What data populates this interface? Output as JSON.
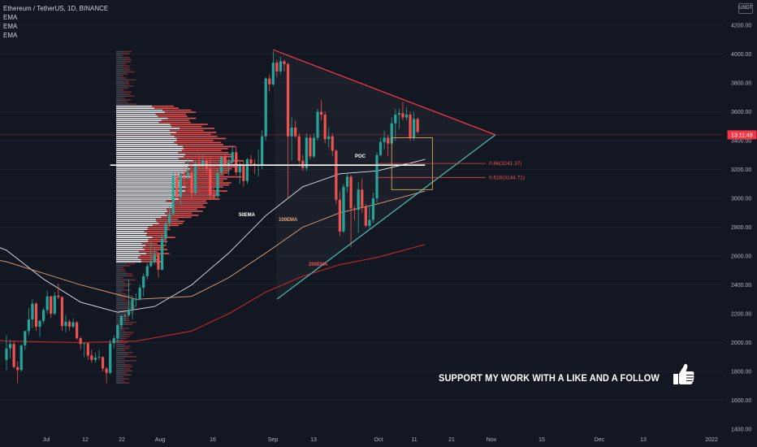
{
  "header": {
    "symbol_title": "Ethereum / TetherUS, 1D, BINANCE",
    "indicators": [
      "EMA",
      "EMA",
      "EMA"
    ],
    "currency_button": "USDT"
  },
  "price_axis": {
    "ticks": [
      "4200.00",
      "4000.00",
      "3800.00",
      "3600.00",
      "3400.00",
      "3200.00",
      "3000.00",
      "2800.00",
      "2600.00",
      "2400.00",
      "2200.00",
      "2000.00",
      "1800.00",
      "1600.00",
      "1400.00"
    ],
    "current_label": "13:11:48",
    "current_label_color": "#f23645"
  },
  "time_axis": {
    "ticks": [
      "Jul",
      "12",
      "22",
      "Aug",
      "16",
      "Sep",
      "13",
      "Oct",
      "11",
      "21",
      "Nov",
      "15",
      "Dec",
      "13",
      "2022"
    ]
  },
  "annotations": {
    "poc_label": "POC",
    "ema50_label": "50EMA",
    "ema100_label": "100EMA",
    "ema200_label": "200EMA",
    "fib_066_label": "0.66(3241.37)",
    "fib_0618_label": "0.618(3144.71)"
  },
  "promo": {
    "text": "SUPPORT MY WORK WITH A LIKE AND A FOLLOW",
    "icon": "thumbs-up-icon"
  },
  "colors": {
    "background": "#131722",
    "up_candle": "#26a69a",
    "down_candle": "#ef5350",
    "ema50": "#e0e3eb",
    "ema100": "#e8a27a",
    "ema200": "#c62828",
    "resistance_line": "#f23645",
    "support_line": "#4db6ac",
    "fib_box": "#d9a55b",
    "poc_line": "#ffffff"
  },
  "chart_data": {
    "type": "candlestick",
    "title": "Ethereum / TetherUS, 1D, BINANCE",
    "ylim": [
      1400,
      4300
    ],
    "candles": [
      {
        "date": "2021-06-23",
        "o": 1880,
        "h": 2050,
        "l": 1810,
        "c": 1960
      },
      {
        "date": "2021-06-24",
        "o": 1960,
        "h": 2020,
        "l": 1890,
        "c": 1990
      },
      {
        "date": "2021-06-25",
        "o": 1990,
        "h": 2010,
        "l": 1820,
        "c": 1830
      },
      {
        "date": "2021-06-26",
        "o": 1830,
        "h": 1870,
        "l": 1720,
        "c": 1810
      },
      {
        "date": "2021-06-27",
        "o": 1810,
        "h": 1990,
        "l": 1800,
        "c": 1980
      },
      {
        "date": "2021-06-28",
        "o": 1980,
        "h": 2080,
        "l": 1950,
        "c": 2080
      },
      {
        "date": "2021-06-29",
        "o": 2080,
        "h": 2240,
        "l": 2050,
        "c": 2160
      },
      {
        "date": "2021-06-30",
        "o": 2160,
        "h": 2300,
        "l": 2100,
        "c": 2270
      },
      {
        "date": "2021-07-01",
        "o": 2270,
        "h": 2280,
        "l": 2080,
        "c": 2110
      },
      {
        "date": "2021-07-02",
        "o": 2110,
        "h": 2160,
        "l": 2040,
        "c": 2150
      },
      {
        "date": "2021-07-03",
        "o": 2150,
        "h": 2240,
        "l": 2130,
        "c": 2225
      },
      {
        "date": "2021-07-04",
        "o": 2225,
        "h": 2360,
        "l": 2200,
        "c": 2320
      },
      {
        "date": "2021-07-05",
        "o": 2320,
        "h": 2325,
        "l": 2170,
        "c": 2200
      },
      {
        "date": "2021-07-06",
        "o": 2200,
        "h": 2350,
        "l": 2190,
        "c": 2325
      },
      {
        "date": "2021-07-07",
        "o": 2325,
        "h": 2410,
        "l": 2300,
        "c": 2315
      },
      {
        "date": "2021-07-08",
        "o": 2315,
        "h": 2320,
        "l": 2080,
        "c": 2115
      },
      {
        "date": "2021-07-09",
        "o": 2115,
        "h": 2190,
        "l": 2070,
        "c": 2145
      },
      {
        "date": "2021-07-10",
        "o": 2145,
        "h": 2160,
        "l": 2080,
        "c": 2110
      },
      {
        "date": "2021-07-11",
        "o": 2110,
        "h": 2170,
        "l": 2100,
        "c": 2140
      },
      {
        "date": "2021-07-12",
        "o": 2140,
        "h": 2150,
        "l": 2020,
        "c": 2030
      },
      {
        "date": "2021-07-13",
        "o": 2030,
        "h": 2040,
        "l": 1950,
        "c": 1990
      },
      {
        "date": "2021-07-14",
        "o": 1990,
        "h": 2000,
        "l": 1900,
        "c": 1995
      },
      {
        "date": "2021-07-15",
        "o": 1995,
        "h": 2000,
        "l": 1880,
        "c": 1910
      },
      {
        "date": "2021-07-16",
        "o": 1910,
        "h": 1950,
        "l": 1860,
        "c": 1880
      },
      {
        "date": "2021-07-17",
        "o": 1880,
        "h": 1930,
        "l": 1860,
        "c": 1895
      },
      {
        "date": "2021-07-18",
        "o": 1895,
        "h": 1950,
        "l": 1880,
        "c": 1900
      },
      {
        "date": "2021-07-19",
        "o": 1900,
        "h": 1905,
        "l": 1800,
        "c": 1820
      },
      {
        "date": "2021-07-20",
        "o": 1820,
        "h": 1830,
        "l": 1720,
        "c": 1790
      },
      {
        "date": "2021-07-21",
        "o": 1790,
        "h": 2020,
        "l": 1780,
        "c": 1995
      },
      {
        "date": "2021-07-22",
        "o": 1995,
        "h": 2050,
        "l": 1960,
        "c": 2030
      },
      {
        "date": "2021-07-23",
        "o": 2030,
        "h": 2130,
        "l": 2000,
        "c": 2120
      },
      {
        "date": "2021-07-24",
        "o": 2120,
        "h": 2190,
        "l": 2090,
        "c": 2185
      },
      {
        "date": "2021-07-25",
        "o": 2185,
        "h": 2200,
        "l": 2150,
        "c": 2190
      },
      {
        "date": "2021-07-26",
        "o": 2190,
        "h": 2440,
        "l": 2180,
        "c": 2230
      },
      {
        "date": "2021-07-27",
        "o": 2230,
        "h": 2320,
        "l": 2160,
        "c": 2300
      },
      {
        "date": "2021-07-28",
        "o": 2300,
        "h": 2340,
        "l": 2250,
        "c": 2300
      },
      {
        "date": "2021-07-29",
        "o": 2300,
        "h": 2400,
        "l": 2290,
        "c": 2380
      },
      {
        "date": "2021-07-30",
        "o": 2380,
        "h": 2480,
        "l": 2320,
        "c": 2460
      },
      {
        "date": "2021-07-31",
        "o": 2460,
        "h": 2550,
        "l": 2440,
        "c": 2530
      },
      {
        "date": "2021-08-01",
        "o": 2530,
        "h": 2700,
        "l": 2520,
        "c": 2560
      },
      {
        "date": "2021-08-02",
        "o": 2560,
        "h": 2660,
        "l": 2540,
        "c": 2610
      },
      {
        "date": "2021-08-03",
        "o": 2610,
        "h": 2630,
        "l": 2450,
        "c": 2505
      },
      {
        "date": "2021-08-04",
        "o": 2505,
        "h": 2760,
        "l": 2500,
        "c": 2720
      },
      {
        "date": "2021-08-05",
        "o": 2720,
        "h": 2840,
        "l": 2680,
        "c": 2825
      },
      {
        "date": "2021-08-06",
        "o": 2825,
        "h": 2950,
        "l": 2800,
        "c": 2890
      },
      {
        "date": "2021-08-07",
        "o": 2890,
        "h": 3180,
        "l": 2880,
        "c": 3150
      },
      {
        "date": "2021-08-08",
        "o": 3150,
        "h": 3180,
        "l": 3000,
        "c": 3010
      },
      {
        "date": "2021-08-09",
        "o": 3010,
        "h": 3180,
        "l": 2950,
        "c": 3160
      },
      {
        "date": "2021-08-10",
        "o": 3160,
        "h": 3220,
        "l": 3080,
        "c": 3150
      },
      {
        "date": "2021-08-11",
        "o": 3150,
        "h": 3280,
        "l": 3130,
        "c": 3180
      },
      {
        "date": "2021-08-12",
        "o": 3180,
        "h": 3190,
        "l": 3000,
        "c": 3040
      },
      {
        "date": "2021-08-13",
        "o": 3040,
        "h": 3260,
        "l": 3020,
        "c": 3240
      },
      {
        "date": "2021-08-14",
        "o": 3240,
        "h": 3300,
        "l": 3200,
        "c": 3230
      },
      {
        "date": "2021-08-15",
        "o": 3230,
        "h": 3300,
        "l": 3200,
        "c": 3260
      },
      {
        "date": "2021-08-16",
        "o": 3260,
        "h": 3270,
        "l": 3170,
        "c": 3210
      },
      {
        "date": "2021-08-17",
        "o": 3210,
        "h": 3280,
        "l": 2990,
        "c": 3020
      },
      {
        "date": "2021-08-18",
        "o": 3020,
        "h": 3080,
        "l": 2990,
        "c": 3015
      },
      {
        "date": "2021-08-19",
        "o": 3015,
        "h": 3200,
        "l": 3000,
        "c": 3180
      },
      {
        "date": "2021-08-20",
        "o": 3180,
        "h": 3290,
        "l": 3160,
        "c": 3285
      },
      {
        "date": "2021-08-21",
        "o": 3285,
        "h": 3300,
        "l": 3220,
        "c": 3230
      },
      {
        "date": "2021-08-22",
        "o": 3230,
        "h": 3280,
        "l": 3160,
        "c": 3250
      },
      {
        "date": "2021-08-23",
        "o": 3250,
        "h": 3360,
        "l": 3240,
        "c": 3320
      },
      {
        "date": "2021-08-24",
        "o": 3320,
        "h": 3360,
        "l": 3160,
        "c": 3180
      },
      {
        "date": "2021-08-25",
        "o": 3180,
        "h": 3250,
        "l": 3100,
        "c": 3230
      },
      {
        "date": "2021-08-26",
        "o": 3230,
        "h": 3260,
        "l": 3080,
        "c": 3120
      },
      {
        "date": "2021-08-27",
        "o": 3120,
        "h": 3280,
        "l": 3100,
        "c": 3270
      },
      {
        "date": "2021-08-28",
        "o": 3270,
        "h": 3300,
        "l": 3220,
        "c": 3240
      },
      {
        "date": "2021-08-29",
        "o": 3240,
        "h": 3270,
        "l": 3170,
        "c": 3225
      },
      {
        "date": "2021-08-30",
        "o": 3225,
        "h": 3340,
        "l": 3150,
        "c": 3230
      },
      {
        "date": "2021-08-31",
        "o": 3230,
        "h": 3470,
        "l": 3200,
        "c": 3430
      },
      {
        "date": "2021-09-01",
        "o": 3430,
        "h": 3840,
        "l": 3400,
        "c": 3830
      },
      {
        "date": "2021-09-02",
        "o": 3830,
        "h": 3860,
        "l": 3740,
        "c": 3790
      },
      {
        "date": "2021-09-03",
        "o": 3790,
        "h": 4020,
        "l": 3780,
        "c": 3940
      },
      {
        "date": "2021-09-04",
        "o": 3940,
        "h": 3960,
        "l": 3840,
        "c": 3880
      },
      {
        "date": "2021-09-05",
        "o": 3880,
        "h": 3980,
        "l": 3860,
        "c": 3950
      },
      {
        "date": "2021-09-06",
        "o": 3950,
        "h": 3960,
        "l": 3880,
        "c": 3930
      },
      {
        "date": "2021-09-07",
        "o": 3930,
        "h": 3940,
        "l": 3000,
        "c": 3430
      },
      {
        "date": "2021-09-08",
        "o": 3430,
        "h": 3560,
        "l": 3260,
        "c": 3490
      },
      {
        "date": "2021-09-09",
        "o": 3490,
        "h": 3540,
        "l": 3420,
        "c": 3430
      },
      {
        "date": "2021-09-10",
        "o": 3430,
        "h": 3450,
        "l": 3220,
        "c": 3260
      },
      {
        "date": "2021-09-11",
        "o": 3260,
        "h": 3300,
        "l": 3190,
        "c": 3210
      },
      {
        "date": "2021-09-12",
        "o": 3210,
        "h": 3450,
        "l": 3190,
        "c": 3420
      },
      {
        "date": "2021-09-13",
        "o": 3420,
        "h": 3440,
        "l": 3270,
        "c": 3290
      },
      {
        "date": "2021-09-14",
        "o": 3290,
        "h": 3450,
        "l": 3280,
        "c": 3420
      },
      {
        "date": "2021-09-15",
        "o": 3420,
        "h": 3620,
        "l": 3400,
        "c": 3600
      },
      {
        "date": "2021-09-16",
        "o": 3600,
        "h": 3680,
        "l": 3540,
        "c": 3580
      },
      {
        "date": "2021-09-17",
        "o": 3580,
        "h": 3600,
        "l": 3380,
        "c": 3410
      },
      {
        "date": "2021-09-18",
        "o": 3410,
        "h": 3490,
        "l": 3350,
        "c": 3430
      },
      {
        "date": "2021-09-19",
        "o": 3430,
        "h": 3450,
        "l": 3290,
        "c": 3330
      },
      {
        "date": "2021-09-20",
        "o": 3330,
        "h": 3340,
        "l": 2960,
        "c": 2990
      },
      {
        "date": "2021-09-21",
        "o": 2990,
        "h": 3050,
        "l": 2740,
        "c": 2770
      },
      {
        "date": "2021-09-22",
        "o": 2770,
        "h": 3100,
        "l": 2760,
        "c": 3080
      },
      {
        "date": "2021-09-23",
        "o": 3080,
        "h": 3170,
        "l": 3040,
        "c": 3150
      },
      {
        "date": "2021-09-24",
        "o": 3150,
        "h": 3160,
        "l": 2660,
        "c": 2930
      },
      {
        "date": "2021-09-25",
        "o": 2930,
        "h": 2950,
        "l": 2850,
        "c": 2920
      },
      {
        "date": "2021-09-26",
        "o": 2920,
        "h": 3110,
        "l": 2760,
        "c": 3060
      },
      {
        "date": "2021-09-27",
        "o": 3060,
        "h": 3140,
        "l": 2900,
        "c": 2940
      },
      {
        "date": "2021-09-28",
        "o": 2940,
        "h": 2960,
        "l": 2800,
        "c": 2810
      },
      {
        "date": "2021-09-29",
        "o": 2810,
        "h": 2950,
        "l": 2790,
        "c": 2850
      },
      {
        "date": "2021-09-30",
        "o": 2850,
        "h": 3040,
        "l": 2830,
        "c": 3000
      },
      {
        "date": "2021-10-01",
        "o": 3000,
        "h": 3320,
        "l": 2970,
        "c": 3300
      },
      {
        "date": "2021-10-02",
        "o": 3300,
        "h": 3420,
        "l": 3290,
        "c": 3390
      },
      {
        "date": "2021-10-03",
        "o": 3390,
        "h": 3470,
        "l": 3340,
        "c": 3420
      },
      {
        "date": "2021-10-04",
        "o": 3420,
        "h": 3440,
        "l": 3290,
        "c": 3380
      },
      {
        "date": "2021-10-05",
        "o": 3380,
        "h": 3560,
        "l": 3370,
        "c": 3520
      },
      {
        "date": "2021-10-06",
        "o": 3520,
        "h": 3620,
        "l": 3400,
        "c": 3580
      },
      {
        "date": "2021-10-07",
        "o": 3580,
        "h": 3620,
        "l": 3480,
        "c": 3590
      },
      {
        "date": "2021-10-08",
        "o": 3590,
        "h": 3670,
        "l": 3540,
        "c": 3560
      },
      {
        "date": "2021-10-09",
        "o": 3560,
        "h": 3630,
        "l": 3540,
        "c": 3580
      },
      {
        "date": "2021-10-10",
        "o": 3580,
        "h": 3600,
        "l": 3400,
        "c": 3420
      },
      {
        "date": "2021-10-11",
        "o": 3420,
        "h": 3600,
        "l": 3400,
        "c": 3550
      },
      {
        "date": "2021-10-12",
        "o": 3550,
        "h": 3560,
        "l": 3450,
        "c": 3460
      }
    ],
    "ema50": [
      [
        0,
        2640
      ],
      [
        10,
        2440
      ],
      [
        20,
        2280
      ],
      [
        30,
        2210
      ],
      [
        40,
        2250
      ],
      [
        50,
        2400
      ],
      [
        60,
        2620
      ],
      [
        70,
        2880
      ],
      [
        80,
        3080
      ],
      [
        90,
        3170
      ],
      [
        100,
        3190
      ],
      [
        110,
        3250
      ],
      [
        113,
        3270
      ]
    ],
    "ema100": [
      [
        0,
        2560
      ],
      [
        20,
        2400
      ],
      [
        35,
        2300
      ],
      [
        50,
        2320
      ],
      [
        60,
        2450
      ],
      [
        70,
        2620
      ],
      [
        80,
        2800
      ],
      [
        90,
        2900
      ],
      [
        100,
        2960
      ],
      [
        113,
        3050
      ]
    ],
    "ema200": [
      [
        0,
        2010
      ],
      [
        20,
        2000
      ],
      [
        35,
        2010
      ],
      [
        50,
        2080
      ],
      [
        60,
        2200
      ],
      [
        70,
        2350
      ],
      [
        80,
        2460
      ],
      [
        90,
        2540
      ],
      [
        100,
        2590
      ],
      [
        113,
        2680
      ]
    ],
    "resistance_line": {
      "from": [
        "2021-09-03",
        4030
      ],
      "to": [
        "2021-11-02",
        3440
      ]
    },
    "support_line": {
      "from": [
        "2021-09-04",
        2300
      ],
      "to": [
        "2021-11-02",
        3440
      ]
    },
    "poc": {
      "price": 3230,
      "from": "2021-07-21",
      "to": "2021-10-14"
    },
    "fib_levels": [
      {
        "label": "0.66(3241.37)",
        "price": 3241.37
      },
      {
        "label": "0.618(3144.71)",
        "price": 3144.71
      }
    ],
    "fib_zone": {
      "from": "2021-10-05",
      "to": "2021-10-16",
      "top": 3420,
      "bottom": 3060
    },
    "current_price": 3440
  }
}
